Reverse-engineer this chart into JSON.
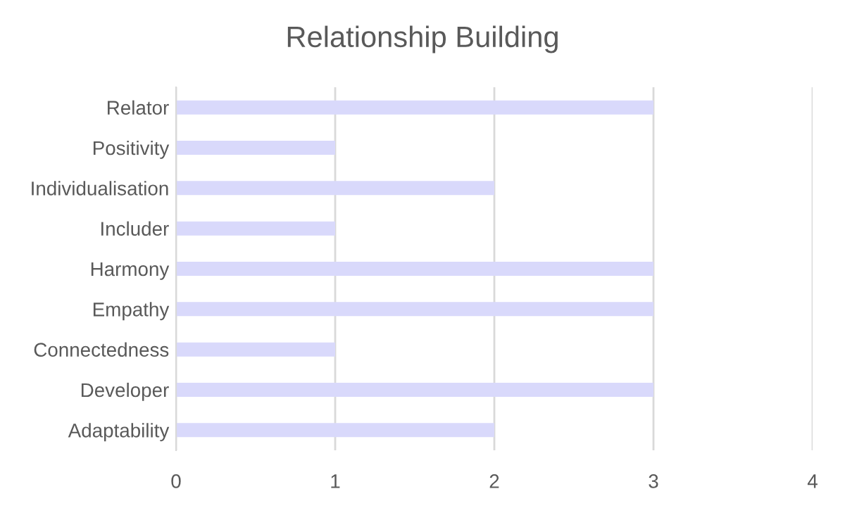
{
  "chart_data": {
    "type": "bar",
    "orientation": "horizontal",
    "title": "Relationship Building",
    "categories": [
      "Relator",
      "Positivity",
      "Individualisation",
      "Includer",
      "Harmony",
      "Empathy",
      "Connectedness",
      "Developer",
      "Adaptability"
    ],
    "values": [
      3,
      1,
      2,
      1,
      3,
      3,
      1,
      3,
      2
    ],
    "color": "#d9d9fb",
    "xlim": [
      0,
      4
    ],
    "xticks": [
      0,
      1,
      2,
      3,
      4
    ],
    "grid": "x",
    "legend": false
  }
}
